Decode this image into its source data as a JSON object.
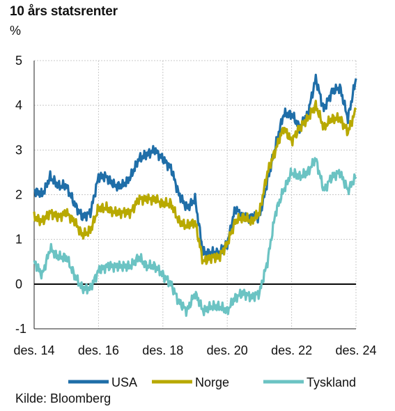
{
  "chart_data": {
    "type": "line",
    "title": "10 års statsrenter",
    "ylabel": "%",
    "source": "Kilde: Bloomberg",
    "ylim": [
      -1,
      5
    ],
    "yticks": [
      5,
      4,
      3,
      2,
      1,
      0,
      -1
    ],
    "xlim": [
      "2014-12",
      "2024-12"
    ],
    "x_tick_labels": [
      "des. 14",
      "des. 16",
      "des. 18",
      "des. 20",
      "des. 22",
      "des. 24"
    ],
    "grid": true,
    "zero_line": true,
    "legend_position": "bottom",
    "x": [
      "2014-12",
      "2015-03",
      "2015-06",
      "2015-09",
      "2015-12",
      "2016-03",
      "2016-06",
      "2016-09",
      "2016-12",
      "2017-03",
      "2017-06",
      "2017-09",
      "2017-12",
      "2018-03",
      "2018-06",
      "2018-09",
      "2018-12",
      "2019-03",
      "2019-06",
      "2019-09",
      "2019-12",
      "2020-03",
      "2020-06",
      "2020-09",
      "2020-12",
      "2021-03",
      "2021-06",
      "2021-09",
      "2021-12",
      "2022-03",
      "2022-06",
      "2022-09",
      "2022-12",
      "2023-03",
      "2023-06",
      "2023-09",
      "2023-12",
      "2024-03",
      "2024-06",
      "2024-09",
      "2024-12"
    ],
    "series": [
      {
        "name": "USA",
        "color": "#1f6ea8",
        "values": [
          2.1,
          2.0,
          2.4,
          2.2,
          2.2,
          1.8,
          1.5,
          1.6,
          2.4,
          2.4,
          2.2,
          2.2,
          2.4,
          2.8,
          2.9,
          3.0,
          2.8,
          2.6,
          2.0,
          1.7,
          1.9,
          0.7,
          0.7,
          0.7,
          0.9,
          1.7,
          1.5,
          1.5,
          1.5,
          2.3,
          3.1,
          3.8,
          3.8,
          3.5,
          3.8,
          4.6,
          3.9,
          4.3,
          4.4,
          3.7,
          4.6
        ]
      },
      {
        "name": "Norge",
        "color": "#b8a900",
        "values": [
          1.5,
          1.4,
          1.6,
          1.5,
          1.6,
          1.4,
          1.1,
          1.2,
          1.7,
          1.7,
          1.6,
          1.6,
          1.6,
          1.9,
          1.9,
          1.9,
          1.8,
          1.8,
          1.4,
          1.3,
          1.4,
          0.5,
          0.6,
          0.6,
          0.9,
          1.4,
          1.5,
          1.4,
          1.6,
          2.5,
          3.0,
          3.5,
          3.2,
          3.5,
          3.7,
          4.0,
          3.5,
          3.7,
          3.7,
          3.4,
          3.9
        ]
      },
      {
        "name": "Tyskland",
        "color": "#6bc3c3",
        "values": [
          0.5,
          0.2,
          0.8,
          0.6,
          0.6,
          0.2,
          -0.1,
          -0.1,
          0.3,
          0.4,
          0.4,
          0.4,
          0.4,
          0.6,
          0.4,
          0.4,
          0.2,
          0.0,
          -0.4,
          -0.6,
          -0.2,
          -0.6,
          -0.5,
          -0.5,
          -0.6,
          -0.3,
          -0.2,
          -0.3,
          -0.2,
          0.5,
          1.6,
          2.1,
          2.5,
          2.4,
          2.5,
          2.8,
          2.1,
          2.4,
          2.5,
          2.1,
          2.4
        ]
      }
    ]
  }
}
